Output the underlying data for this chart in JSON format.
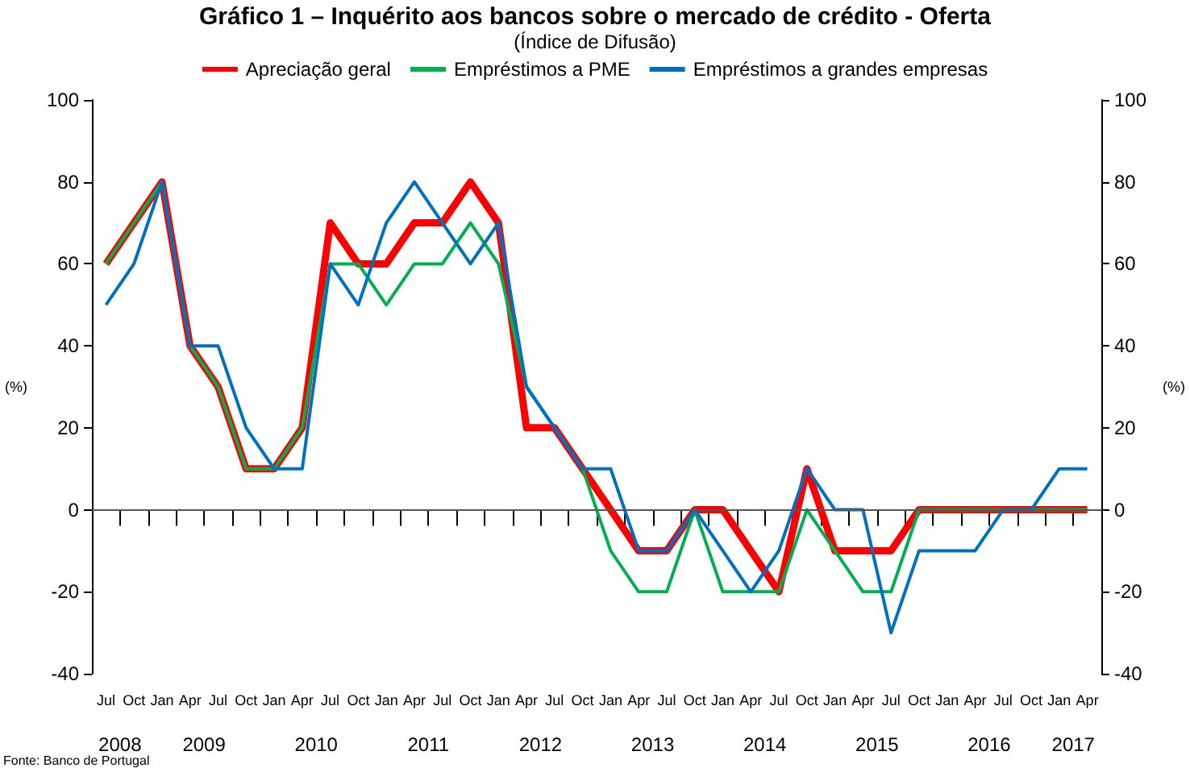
{
  "chart_data": {
    "type": "line",
    "title": "Gráfico 1 – Inquérito aos bancos sobre o mercado de crédito - Oferta",
    "subtitle": "(Índice de Difusão)",
    "categories": [
      "Jul",
      "Oct",
      "Jan",
      "Apr",
      "Jul",
      "Oct",
      "Jan",
      "Apr",
      "Jul",
      "Oct",
      "Jan",
      "Apr",
      "Jul",
      "Oct",
      "Jan",
      "Apr",
      "Jul",
      "Oct",
      "Jan",
      "Apr",
      "Jul",
      "Oct",
      "Jan",
      "Apr",
      "Jul",
      "Oct",
      "Jan",
      "Apr",
      "Jul",
      "Oct",
      "Jan",
      "Apr",
      "Jul",
      "Oct",
      "Jan",
      "Apr"
    ],
    "series": [
      {
        "name": "Apreciação geral",
        "color": "#ff0000",
        "values": [
          60,
          70,
          80,
          40,
          30,
          10,
          10,
          20,
          70,
          60,
          60,
          70,
          70,
          80,
          70,
          20,
          20,
          10,
          0,
          -10,
          -10,
          0,
          0,
          -10,
          -20,
          10,
          -10,
          -10,
          -10,
          0,
          0,
          0,
          0,
          0,
          0,
          0
        ]
      },
      {
        "name": "Empréstimos a PME",
        "color": "#00b050",
        "values": [
          60,
          70,
          80,
          40,
          30,
          10,
          10,
          20,
          60,
          60,
          50,
          60,
          60,
          70,
          60,
          30,
          20,
          10,
          -10,
          -20,
          -20,
          0,
          -20,
          -20,
          -20,
          0,
          -10,
          -20,
          -20,
          0,
          0,
          0,
          0,
          0,
          0,
          0
        ]
      },
      {
        "name": "Empréstimos a grandes empresas",
        "color": "#0070c0",
        "values": [
          50,
          60,
          80,
          40,
          40,
          20,
          10,
          10,
          60,
          50,
          70,
          80,
          70,
          60,
          70,
          30,
          20,
          10,
          10,
          -10,
          -10,
          0,
          -10,
          -20,
          -10,
          10,
          0,
          0,
          -30,
          -10,
          -10,
          -10,
          0,
          0,
          10,
          10
        ]
      }
    ],
    "ylim": [
      -40,
      100
    ],
    "yticks": [
      -40,
      -20,
      0,
      20,
      40,
      60,
      80,
      100
    ],
    "ylabel": "(%)",
    "y2lim": [
      -40,
      100
    ],
    "y2ticks": [
      -40,
      -20,
      0,
      20,
      40,
      60,
      80,
      100
    ],
    "y2label": "(%)",
    "grid": false,
    "ref_lines": [
      {
        "axis": "y",
        "value": 0,
        "color": "#555555"
      }
    ],
    "legend": "top",
    "marker": "none",
    "annotations": [
      "2008",
      "2009",
      "2010",
      "2011",
      "2012",
      "2013",
      "2014",
      "2015",
      "2016",
      "2017",
      "Fonte: Banco de Portugal"
    ]
  }
}
